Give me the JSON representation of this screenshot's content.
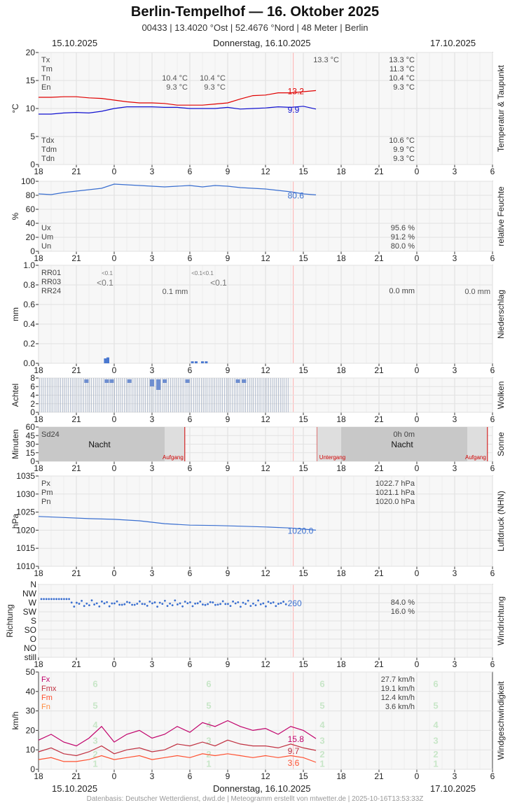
{
  "header": {
    "title": "Berlin-Tempelhof  —  16. Oktober 2025",
    "subtitle": "00433  |  13.4020 °Ost  |  52.4676 °Nord  |  48 Meter  |  Berlin"
  },
  "dates": {
    "left": "15.10.2025",
    "center": "Donnerstag, 16.10.2025",
    "right": "17.10.2025"
  },
  "footer": "Datenbasis: Deutscher Wetterdienst, dwd.de | Meteogramm erstellt von mtwetter.de | 2025-10-16T13:53:33Z",
  "x_ticks": [
    "18",
    "21",
    "0",
    "3",
    "6",
    "9",
    "12",
    "15",
    "18",
    "21",
    "0",
    "3",
    "6"
  ],
  "chart_data": [
    {
      "type": "line",
      "title": "Temperatur & Taupunkt",
      "ylabel": "°C",
      "ylim": [
        0,
        20
      ],
      "yticks": [
        "0",
        "5",
        "10",
        "15",
        "20"
      ],
      "x_hours": [
        0,
        1,
        2,
        3,
        4,
        5,
        6,
        7,
        8,
        9,
        10,
        11,
        12,
        13,
        14,
        15,
        16,
        17,
        18,
        19,
        20,
        21,
        22
      ],
      "series": [
        {
          "name": "",
          "color": "#e00000",
          "values": [
            12.0,
            12.0,
            12.1,
            12.1,
            11.9,
            11.8,
            11.5,
            11.2,
            11.0,
            11.0,
            10.9,
            10.6,
            10.6,
            10.6,
            10.8,
            11.0,
            11.7,
            12.3,
            12.4,
            12.8,
            12.8,
            13.0,
            13.2
          ]
        },
        {
          "name": "",
          "color": "#1010d0",
          "values": [
            9.0,
            9.0,
            9.2,
            9.3,
            9.2,
            9.5,
            10.0,
            10.3,
            10.3,
            10.3,
            10.2,
            10.2,
            10.0,
            10.0,
            10.0,
            10.2,
            9.9,
            10.0,
            10.1,
            10.3,
            10.2,
            10.4,
            9.9
          ]
        }
      ],
      "end_labels": [
        "13.2",
        "9.9"
      ],
      "label_rows": [
        {
          "label": "Tx",
          "val1": "",
          "val2": "",
          "right": "13.3 °C"
        },
        {
          "label": "Tm",
          "val1": "",
          "val2": "",
          "right": "11.3 °C"
        },
        {
          "label": "Tn",
          "val1": "10.4 °C",
          "val2": "10.4 °C",
          "right": "10.4 °C"
        },
        {
          "label": "En",
          "val1": "9.3 °C",
          "val2": "9.3 °C",
          "right": "9.3 °C"
        }
      ],
      "extra_value": "13.3 °C",
      "label_rows_bottom": [
        {
          "label": "Tdx",
          "right": "10.6 °C"
        },
        {
          "label": "Tdm",
          "right": "9.9 °C"
        },
        {
          "label": "Tdn",
          "right": "9.3 °C"
        }
      ]
    },
    {
      "type": "line",
      "title": "relative Feuchte",
      "ylabel": "%",
      "ylim": [
        0,
        100
      ],
      "yticks": [
        "0",
        "20",
        "40",
        "60",
        "80",
        "100"
      ],
      "x_hours": [
        0,
        1,
        2,
        3,
        4,
        5,
        6,
        7,
        8,
        9,
        10,
        11,
        12,
        13,
        14,
        15,
        16,
        17,
        18,
        19,
        20,
        21,
        22
      ],
      "series": [
        {
          "name": "",
          "color": "#3a6fd0",
          "values": [
            82,
            81,
            84,
            86,
            88,
            90,
            96,
            95,
            94,
            93,
            92,
            93,
            94,
            92,
            94,
            93,
            91,
            90,
            89,
            87,
            85,
            82,
            80.6
          ]
        }
      ],
      "end_labels": [
        "80.6"
      ],
      "label_rows_bottom": [
        {
          "label": "Ux",
          "right": "95.6 %"
        },
        {
          "label": "Um",
          "right": "91.2 %"
        },
        {
          "label": "Un",
          "right": "80.0 %"
        }
      ]
    },
    {
      "type": "bar",
      "title": "Niederschlag",
      "ylabel": "mm",
      "ylim": [
        0,
        1.0
      ],
      "yticks": [
        "0.0",
        "0.2",
        "0.4",
        "0.6",
        "0.8",
        "1.0"
      ],
      "bars": [
        {
          "x": 5.3,
          "value": 0.05
        },
        {
          "x": 5.5,
          "value": 0.06
        },
        {
          "x": 12.2,
          "value": 0.02
        },
        {
          "x": 12.5,
          "value": 0.02
        },
        {
          "x": 13.0,
          "value": 0.02
        },
        {
          "x": 13.3,
          "value": 0.02
        }
      ],
      "rows": [
        {
          "label": "RR01",
          "right": ""
        },
        {
          "label": "RR03",
          "right": ""
        },
        {
          "label": "RR24",
          "right": "0.0 mm"
        }
      ],
      "annotations": [
        "<0.1",
        "<0.1",
        "0.1 mm",
        "<0.1<0.1",
        "<0.1"
      ]
    },
    {
      "type": "bar",
      "title": "Wolken",
      "ylabel": "Achtel",
      "ylim": [
        0,
        8
      ],
      "yticks": [
        "0",
        "2",
        "4",
        "6",
        "8"
      ],
      "values": [
        8,
        8,
        8,
        8,
        8,
        8,
        8,
        8,
        8,
        8,
        8,
        8,
        8,
        8,
        8,
        8,
        8,
        8,
        8,
        8,
        8,
        8,
        8,
        8,
        8,
        8,
        8,
        8,
        8,
        8,
        8,
        8,
        8,
        8,
        8,
        8,
        8,
        8,
        8,
        8,
        8,
        8,
        8,
        8,
        8,
        8,
        8,
        8,
        8,
        8,
        8,
        8,
        8,
        8,
        8,
        8,
        8,
        8,
        8,
        8,
        8,
        8,
        8,
        8,
        8,
        8,
        8,
        8,
        8,
        8,
        8,
        8,
        8,
        8,
        8,
        8,
        8,
        8,
        8,
        8,
        8,
        8,
        8,
        8,
        8,
        8,
        8,
        8,
        8,
        8,
        8,
        8,
        8,
        8,
        8,
        8,
        8,
        8,
        8,
        8,
        8,
        8,
        8,
        8,
        8,
        8,
        8,
        8,
        8,
        8,
        8,
        8,
        8,
        8,
        8,
        8,
        8,
        8,
        8,
        8,
        8,
        8,
        8,
        8,
        8,
        8,
        8,
        8,
        8,
        8
      ]
    },
    {
      "type": "bar",
      "title": "Sonne",
      "ylabel": "Minuten",
      "ylim": [
        0,
        60
      ],
      "yticks": [
        "0",
        "15",
        "30",
        "45",
        "60"
      ],
      "label": "Sd24",
      "right": "0h 0m",
      "night": "Nacht",
      "sunrise": "Aufgang",
      "sunset": "Untergang"
    },
    {
      "type": "line",
      "title": "Luftdruck (NHN)",
      "ylabel": "hPa",
      "ylim": [
        1010,
        1035
      ],
      "yticks": [
        "1010",
        "1015",
        "1020",
        "1025",
        "1030",
        "1035"
      ],
      "x_hours": [
        0,
        2,
        4,
        6,
        8,
        10,
        12,
        14,
        16,
        18,
        20,
        22
      ],
      "series": [
        {
          "name": "",
          "color": "#3a6fd0",
          "values": [
            1023.8,
            1023.5,
            1023.2,
            1023.0,
            1022.6,
            1021.8,
            1021.4,
            1021.3,
            1021.1,
            1020.9,
            1020.6,
            1020.0
          ]
        }
      ],
      "end_labels": [
        "1020.0"
      ],
      "label_rows": [
        {
          "label": "Px",
          "right": "1022.7 hPa"
        },
        {
          "label": "Pm",
          "right": "1021.1 hPa"
        },
        {
          "label": "Pn",
          "right": "1020.0 hPa"
        }
      ]
    },
    {
      "type": "scatter",
      "title": "Windrichtung",
      "ylabel": "Richtung",
      "yticks": [
        "still",
        "NO",
        "O",
        "SO",
        "S",
        "SW",
        "W",
        "NW",
        "N"
      ],
      "end_labels": [
        "260"
      ],
      "label_rows": [
        {
          "label": "",
          "right": "84.0 %"
        },
        {
          "label": "",
          "right": "16.0 %"
        }
      ]
    },
    {
      "type": "line",
      "title": "Windgeschwindigkeit",
      "ylabel": "km/h",
      "ylim": [
        0,
        50
      ],
      "yticks": [
        "0",
        "10",
        "20",
        "30",
        "40",
        "50"
      ],
      "x_hours": [
        0,
        1,
        2,
        3,
        4,
        5,
        6,
        7,
        8,
        9,
        10,
        11,
        12,
        13,
        14,
        15,
        16,
        17,
        18,
        19,
        20,
        21,
        22
      ],
      "series": [
        {
          "name": "Fx",
          "color": "#c0006a",
          "values": [
            15,
            18,
            14,
            12,
            16,
            22,
            14,
            18,
            20,
            16,
            18,
            22,
            19,
            24,
            22,
            25,
            22,
            20,
            21,
            18,
            22,
            20,
            15.8
          ]
        },
        {
          "name": "Fmx",
          "color": "#c03040",
          "values": [
            9,
            11,
            8,
            7,
            9,
            12,
            8,
            10,
            11,
            9,
            10,
            13,
            12,
            14,
            12,
            15,
            13,
            12,
            12,
            11,
            13,
            11,
            9.7
          ]
        },
        {
          "name": "Fm",
          "color": "#ff5030",
          "values": [
            5,
            6,
            4,
            4,
            5,
            7,
            5,
            6,
            7,
            5,
            6,
            7,
            6,
            8,
            7,
            8,
            7,
            6,
            7,
            6,
            7,
            6,
            3.6
          ]
        },
        {
          "name": "Fn",
          "color": "",
          "values": []
        }
      ],
      "end_labels": [
        "15.8",
        "9.7",
        "3.6"
      ],
      "label_rows": [
        {
          "label": "Fx",
          "right": "27.7 km/h"
        },
        {
          "label": "Fmx",
          "right": "19.1 km/h"
        },
        {
          "label": "Fm",
          "right": "12.4 km/h"
        },
        {
          "label": "Fn",
          "right": "3.6 km/h"
        }
      ],
      "beaufort": [
        "1",
        "2",
        "3",
        "4",
        "5",
        "6"
      ]
    }
  ]
}
